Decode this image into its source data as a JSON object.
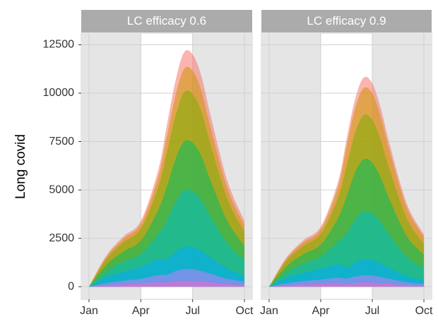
{
  "chart_data": [
    {
      "type": "area",
      "title": "LC efficacy 0.6",
      "ylabel": "Long covid",
      "x": [
        0,
        1,
        2,
        3,
        4,
        4.5,
        5,
        5.5,
        6,
        6.5,
        7,
        8,
        9
      ],
      "xlim": [
        -0.45,
        9.45
      ],
      "xticks": [
        {
          "value": 0,
          "label": "Jan"
        },
        {
          "value": 3,
          "label": "Apr"
        },
        {
          "value": 6,
          "label": "Jul"
        },
        {
          "value": 9,
          "label": "Oct"
        }
      ],
      "ylim": [
        -650,
        13100
      ],
      "yticks": [
        0,
        2500,
        5000,
        7500,
        10000,
        12500
      ],
      "grid": true,
      "series": [
        {
          "color": "#F8766D",
          "values": [
            0,
            1600,
            2600,
            3400,
            6000,
            8300,
            10600,
            12100,
            12000,
            10900,
            9000,
            5500,
            3400
          ]
        },
        {
          "color": "#CD9600",
          "values": [
            0,
            1520,
            2470,
            3230,
            5640,
            7720,
            9860,
            11250,
            11160,
            10140,
            8370,
            5120,
            3160
          ]
        },
        {
          "color": "#7CAE00",
          "values": [
            0,
            1410,
            2290,
            2990,
            5130,
            6890,
            8800,
            10040,
            9960,
            9050,
            7470,
            4570,
            2820
          ]
        },
        {
          "color": "#00BE67",
          "values": [
            0,
            1120,
            1820,
            2380,
            3960,
            5150,
            6570,
            7500,
            7440,
            6760,
            5580,
            3410,
            2110
          ]
        },
        {
          "color": "#00BFC4",
          "values": [
            0,
            800,
            1300,
            1700,
            2730,
            3400,
            4350,
            4960,
            4920,
            4470,
            3690,
            2260,
            1390
          ]
        },
        {
          "color": "#00A9FF",
          "values": [
            0,
            480,
            780,
            1020,
            1410,
            1410,
            1800,
            2060,
            2040,
            1850,
            1530,
            940,
            580
          ]
        },
        {
          "color": "#C77CFF",
          "values": [
            0,
            190,
            310,
            410,
            600,
            620,
            800,
            910,
            900,
            820,
            680,
            410,
            260
          ]
        },
        {
          "color": "#FF61CC",
          "values": [
            0,
            80,
            130,
            170,
            230,
            210,
            270,
            300,
            300,
            270,
            230,
            140,
            90
          ]
        }
      ]
    },
    {
      "type": "area",
      "title": "LC efficacy 0.9",
      "x": [
        0,
        1,
        2,
        3,
        4,
        4.5,
        5,
        5.5,
        6,
        6.5,
        7,
        8,
        9
      ],
      "xlim": [
        -0.45,
        9.45
      ],
      "xticks": [
        {
          "value": 0,
          "label": "Jan"
        },
        {
          "value": 3,
          "label": "Apr"
        },
        {
          "value": 6,
          "label": "Jul"
        },
        {
          "value": 9,
          "label": "Oct"
        }
      ],
      "ylim": [
        -650,
        13100
      ],
      "yticks": [
        0,
        2500,
        5000,
        7500,
        10000,
        12500
      ],
      "grid": true,
      "series": [
        {
          "color": "#F8766D",
          "values": [
            0,
            1500,
            2400,
            3100,
            5400,
            7600,
            9700,
            10800,
            10500,
            9200,
            7400,
            4300,
            2700
          ]
        },
        {
          "color": "#CD9600",
          "values": [
            0,
            1430,
            2280,
            2950,
            5130,
            7220,
            9220,
            10260,
            9980,
            8740,
            7030,
            4090,
            2570
          ]
        },
        {
          "color": "#7CAE00",
          "values": [
            0,
            1320,
            2110,
            2730,
            4590,
            6230,
            7950,
            8860,
            8610,
            7540,
            6070,
            3530,
            2210
          ]
        },
        {
          "color": "#00BE67",
          "values": [
            0,
            1050,
            1680,
            2170,
            3540,
            4640,
            5920,
            6590,
            6410,
            5610,
            4510,
            2620,
            1650
          ]
        },
        {
          "color": "#00BFC4",
          "values": [
            0,
            750,
            1200,
            1550,
            2320,
            2740,
            3490,
            3890,
            3780,
            3310,
            2660,
            1550,
            970
          ]
        },
        {
          "color": "#00A9FF",
          "values": [
            0,
            450,
            720,
            930,
            1160,
            990,
            1260,
            1400,
            1370,
            1200,
            960,
            560,
            350
          ]
        },
        {
          "color": "#C77CFF",
          "values": [
            0,
            180,
            290,
            370,
            470,
            420,
            530,
            590,
            580,
            510,
            410,
            240,
            150
          ]
        },
        {
          "color": "#FF61CC",
          "values": [
            0,
            75,
            120,
            155,
            190,
            150,
            190,
            220,
            210,
            180,
            150,
            90,
            55
          ]
        }
      ]
    }
  ]
}
